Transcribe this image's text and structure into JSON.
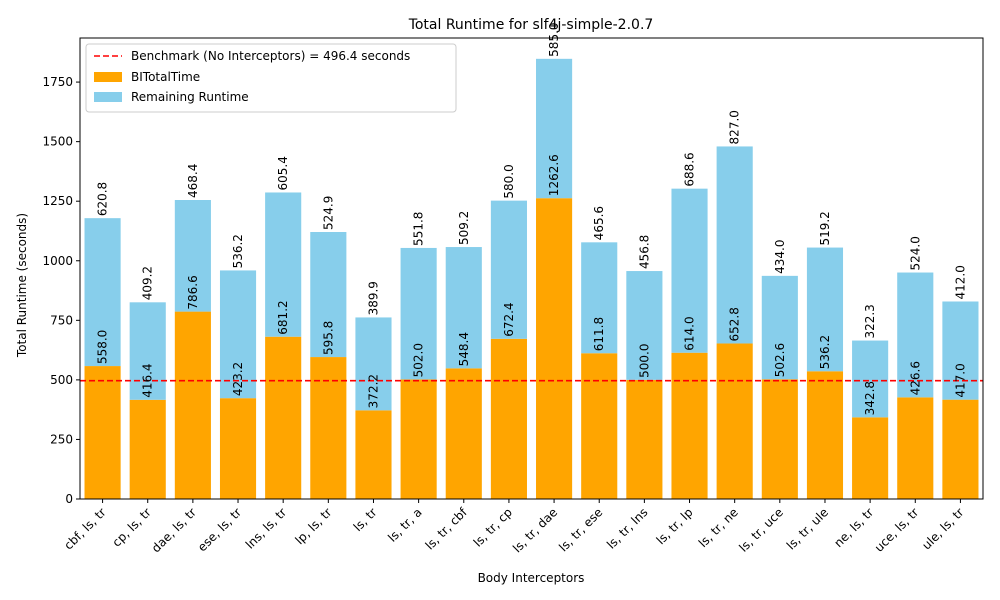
{
  "chart_data": {
    "type": "bar",
    "stacked": true,
    "title": "Total Runtime for slf4j-simple-2.0.7",
    "xlabel": "Body Interceptors",
    "ylabel": "Total Runtime (seconds)",
    "ylim": [
      0,
      1935
    ],
    "yticks": [
      0,
      250,
      500,
      750,
      1000,
      1250,
      1500,
      1750
    ],
    "grid": false,
    "legend_position": "top-left",
    "categories": [
      "cbf, ls, tr",
      "cp, ls, tr",
      "dae, ls, tr",
      "ese, ls, tr",
      "lns, ls, tr",
      "lp, ls, tr",
      "ls, tr",
      "ls, tr, a",
      "ls, tr, cbf",
      "ls, tr, cp",
      "ls, tr, dae",
      "ls, tr, ese",
      "ls, tr, lns",
      "ls, tr, lp",
      "ls, tr, ne",
      "ls, tr, uce",
      "ls, tr, ule",
      "ne, ls, tr",
      "uce, ls, tr",
      "ule, ls, tr"
    ],
    "series": [
      {
        "name": "BITotalTime",
        "color": "#ffa500",
        "values": [
          558.0,
          416.4,
          786.6,
          423.2,
          681.2,
          595.8,
          372.2,
          502.0,
          548.4,
          672.4,
          1262.6,
          611.8,
          500.0,
          614.0,
          652.8,
          502.6,
          536.2,
          342.8,
          426.6,
          417.0
        ],
        "labels": [
          "558.0",
          "416.4",
          "786.6",
          "423.2",
          "681.2",
          "595.8",
          "372.2",
          "502.0",
          "548.4",
          "672.4",
          "1262.6",
          "611.8",
          "500.0",
          "614.0",
          "652.8",
          "502.6",
          "536.2",
          "342.8",
          "426.6",
          "417.0"
        ]
      },
      {
        "name": "Remaining Runtime",
        "color": "#87ceeb",
        "values": [
          620.8,
          409.2,
          468.4,
          536.2,
          605.4,
          524.9,
          389.9,
          551.8,
          509.2,
          580.0,
          585.0,
          465.6,
          456.8,
          688.6,
          827.0,
          434.0,
          519.2,
          322.3,
          524.0,
          412.0
        ],
        "labels": [
          "620.8",
          "409.2",
          "468.4",
          "536.2",
          "605.4",
          "524.9",
          "389.9",
          "551.8",
          "509.2",
          "580.0",
          "585.0",
          "465.6",
          "456.8",
          "688.6",
          "827.0",
          "434.0",
          "519.2",
          "322.3",
          "524.0",
          "412.0"
        ]
      }
    ],
    "benchmark": {
      "label": "Benchmark (No Interceptors) = 496.4 seconds",
      "value": 496.4,
      "color": "#ff0000",
      "style": "dashed"
    }
  }
}
